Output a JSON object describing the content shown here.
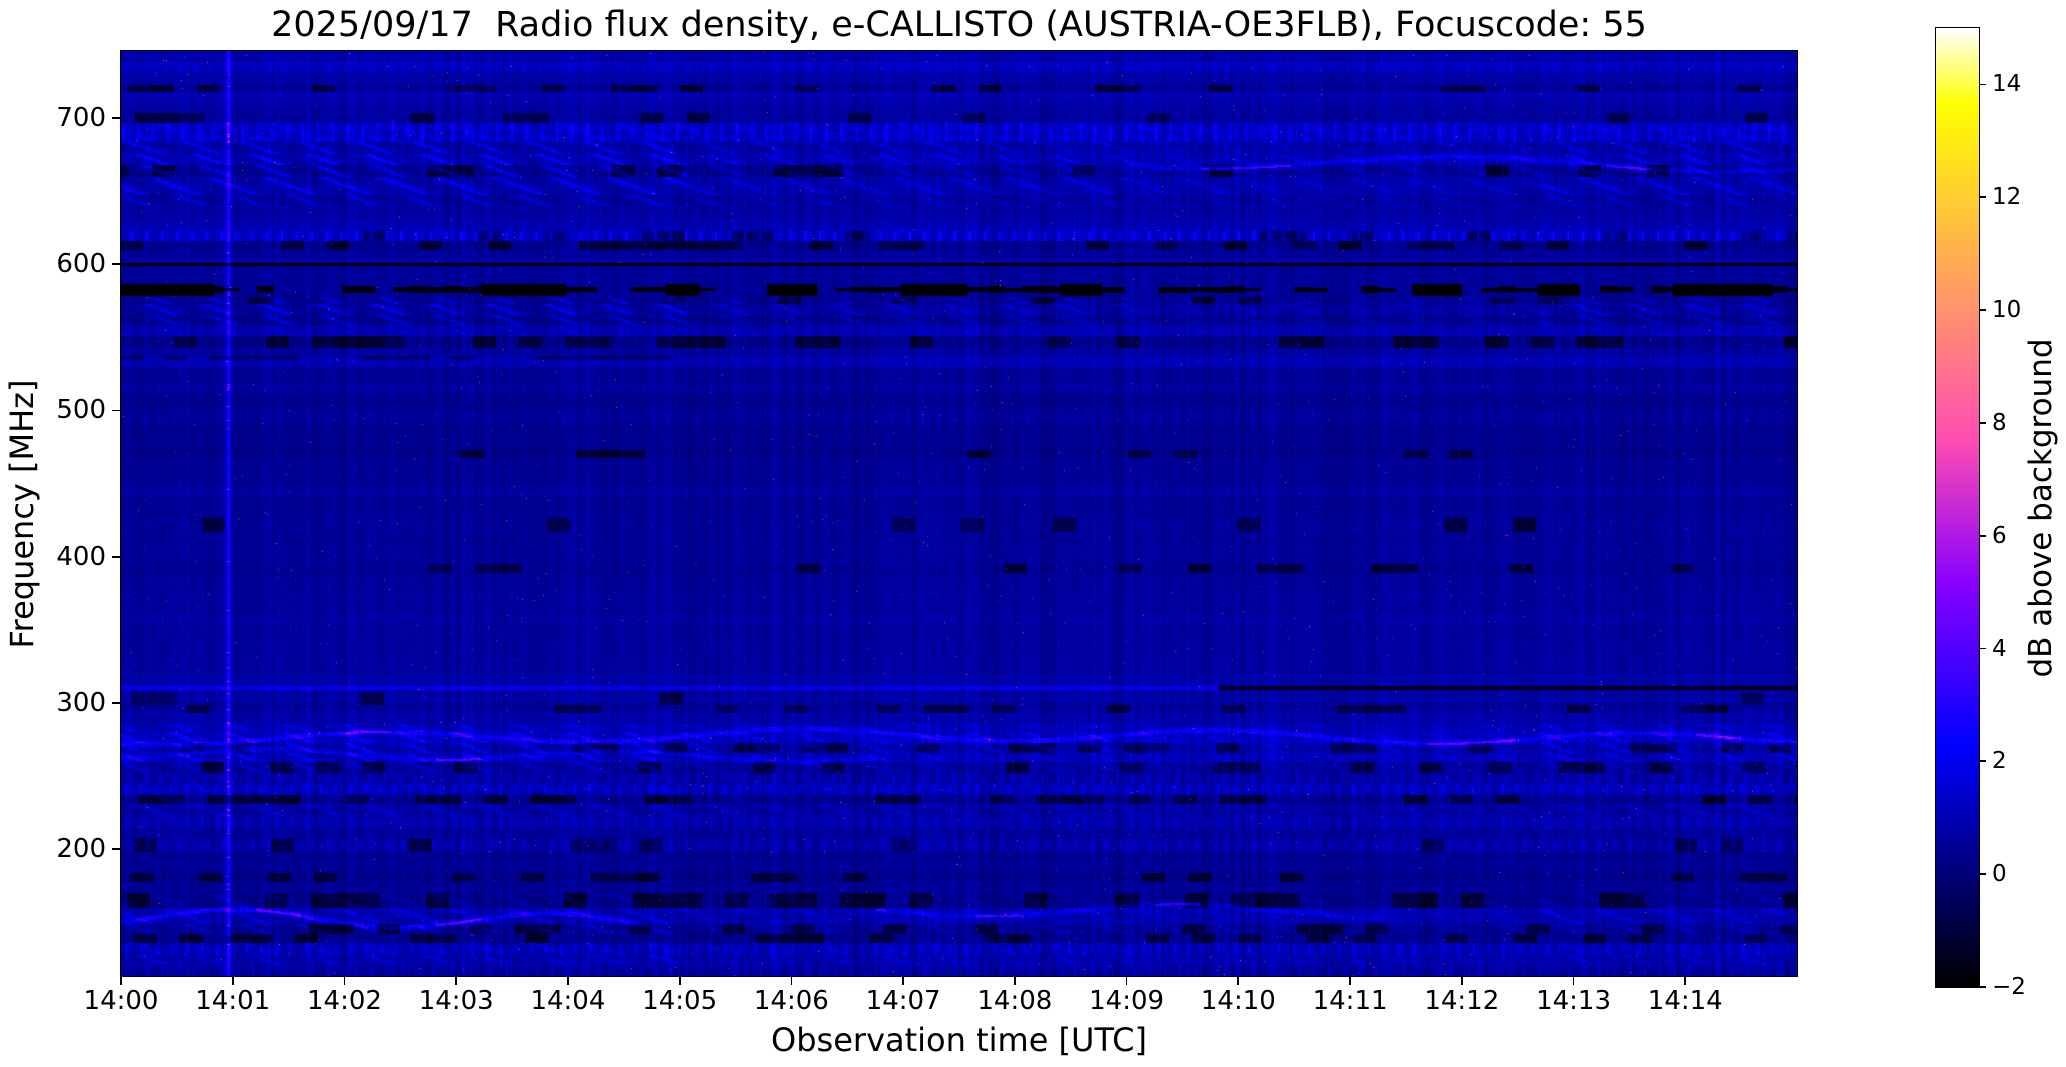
{
  "figure": {
    "title": "2025/09/17  Radio flux density, e-CALLISTO (AUSTRIA-OE3FLB), Focuscode: 55",
    "xlabel": "Observation time [UTC]",
    "ylabel": "Frequency [MHz]",
    "background_color": "#ffffff",
    "text_color": "#000000"
  },
  "axes": {
    "x_tick_labels": [
      "14:00",
      "14:01",
      "14:02",
      "14:03",
      "14:04",
      "14:05",
      "14:06",
      "14:07",
      "14:08",
      "14:09",
      "14:10",
      "14:11",
      "14:12",
      "14:13",
      "14:14"
    ],
    "x_total_minutes": 15,
    "y_tick_labels": [
      "700",
      "600",
      "500",
      "400",
      "300",
      "200"
    ],
    "y_tick_values": [
      700,
      600,
      500,
      400,
      300,
      200
    ],
    "freq_top_mhz": 746,
    "freq_bottom_mhz": 113
  },
  "colorbar": {
    "label": "dB above background",
    "tick_labels": [
      "14",
      "12",
      "10",
      "8",
      "6",
      "4",
      "2",
      "0",
      "−2"
    ],
    "tick_values": [
      14,
      12,
      10,
      8,
      6,
      4,
      2,
      0,
      -2
    ],
    "vmin": -2,
    "vmax": 15,
    "colormap": "gnuplot2"
  },
  "chart_data": {
    "type": "heatmap",
    "title": "2025/09/17  Radio flux density, e-CALLISTO (AUSTRIA-OE3FLB), Focuscode: 55",
    "xlabel": "Observation time [UTC]",
    "ylabel": "Frequency [MHz]",
    "x_range_utc": [
      "14:00",
      "14:15"
    ],
    "x_tick_labels": [
      "14:00",
      "14:01",
      "14:02",
      "14:03",
      "14:04",
      "14:05",
      "14:06",
      "14:07",
      "14:08",
      "14:09",
      "14:10",
      "14:11",
      "14:12",
      "14:13",
      "14:14"
    ],
    "y_range_mhz": [
      113,
      746
    ],
    "y_tick_values_mhz": [
      700,
      600,
      500,
      400,
      300,
      200
    ],
    "value_unit": "dB above background",
    "value_range": [
      -2,
      15
    ],
    "colormap": "gnuplot2",
    "background_level_db": 0.6,
    "notable_features": [
      "Quiet-Sun spectrogram: deep blue background near 0-1 dB, no solar bursts",
      "Thin saturated black horizontal line at 600 MHz across full duration",
      "Row of black saturated dashes/blobs near 583 MHz across full duration",
      "Line near 310 MHz: bright blue before ~14:10, black after ~14:10",
      "Bright vertical RFI/calibration line at ~14:01 spanning all frequencies with magenta flecks",
      "Diagonal RFI streak texture strongest between 14:00 and 14:04",
      "Bright dotted RFI bands near 690 MHz and 620 MHz",
      "Bright wavy RFI ridges near 277 MHz, 264 MHz, 670 MHz and 152 MHz",
      "Strong fine vertical striping (per-sweep noise) everywhere"
    ],
    "render_model": {
      "seed": 7,
      "bands": [
        [
          746,
          738,
          0.8,
          0.8,
          0,
          0,
          0
        ],
        [
          738,
          732,
          1.05,
          0.7,
          0,
          0.3,
          0
        ],
        [
          732,
          723,
          0.6,
          0.7,
          0,
          0,
          0
        ],
        [
          723,
          718,
          0.35,
          0.8,
          0,
          0,
          0.3
        ],
        [
          718,
          712,
          0.85,
          0.7,
          0,
          0,
          0
        ],
        [
          712,
          704,
          0.6,
          0.7,
          0,
          0,
          0
        ],
        [
          704,
          697,
          0.5,
          0.7,
          0,
          0,
          0.15
        ],
        [
          697,
          684,
          1.15,
          0.9,
          0.3,
          0.8,
          0
        ],
        [
          684,
          676,
          0.6,
          0.9,
          0.9,
          0.3,
          0
        ],
        [
          676,
          668,
          0.95,
          0.9,
          1.0,
          0,
          0
        ],
        [
          668,
          660,
          0.45,
          1.0,
          1.0,
          0,
          0.25
        ],
        [
          660,
          648,
          0.8,
          0.9,
          0.9,
          0,
          0
        ],
        [
          648,
          640,
          0.55,
          0.8,
          0.7,
          0,
          0
        ],
        [
          640,
          630,
          0.65,
          0.7,
          0,
          0,
          0
        ],
        [
          630,
          623,
          0.9,
          0.8,
          0,
          0.3,
          0
        ],
        [
          623,
          616,
          1.25,
          1.0,
          0,
          1.1,
          0.15
        ],
        [
          616,
          610,
          0.35,
          1.0,
          0,
          0,
          0.35
        ],
        [
          610,
          603,
          0.6,
          0.6,
          0,
          0,
          0
        ],
        [
          603,
          601.5,
          0.95,
          0.5,
          0,
          0,
          0
        ],
        [
          601.5,
          599,
          -1.9,
          0.15,
          0,
          0,
          0
        ],
        [
          599,
          589,
          0.55,
          0.6,
          0,
          0,
          0
        ],
        [
          589,
          578,
          0.55,
          0.8,
          0,
          0,
          0
        ],
        [
          578,
          573,
          0.5,
          0.9,
          0.8,
          0,
          0.2
        ],
        [
          573,
          566,
          0.75,
          0.9,
          0.9,
          0,
          0
        ],
        [
          566,
          558,
          0.5,
          0.9,
          0.8,
          0,
          0
        ],
        [
          558,
          551,
          1.05,
          0.9,
          0.3,
          0,
          0
        ],
        [
          551,
          543,
          0.4,
          1.0,
          0,
          0,
          0.3
        ],
        [
          543,
          537,
          0.8,
          0.8,
          0,
          0,
          0
        ],
        [
          537,
          530,
          1.1,
          0.8,
          0,
          0,
          0
        ],
        [
          530,
          519,
          0.6,
          0.7,
          0,
          0,
          0
        ],
        [
          519,
          512,
          0.75,
          0.7,
          0,
          0,
          0
        ],
        [
          512,
          500,
          0.5,
          0.6,
          0,
          0,
          0
        ],
        [
          500,
          492,
          0.65,
          0.7,
          0,
          0.3,
          0
        ],
        [
          492,
          473,
          0.5,
          0.6,
          0,
          0,
          0
        ],
        [
          473,
          468,
          0.4,
          0.7,
          0,
          0,
          0.2
        ],
        [
          468,
          448,
          0.55,
          0.6,
          0,
          0,
          0
        ],
        [
          448,
          442,
          0.7,
          0.7,
          0,
          0,
          0
        ],
        [
          442,
          427,
          0.5,
          0.6,
          0,
          0,
          0
        ],
        [
          427,
          417,
          0.55,
          0.8,
          0,
          0,
          0.15
        ],
        [
          417,
          395,
          0.5,
          0.6,
          0,
          0,
          0
        ],
        [
          395,
          389,
          0.4,
          0.7,
          0,
          0,
          0.2
        ],
        [
          389,
          361,
          0.5,
          0.6,
          0,
          0,
          0
        ],
        [
          361,
          353,
          0.6,
          0.7,
          0,
          0,
          0
        ],
        [
          353,
          330,
          0.48,
          0.6,
          0,
          0,
          0
        ],
        [
          330,
          318,
          0.55,
          0.7,
          0,
          0,
          0
        ],
        [
          318,
          313,
          0.7,
          0.7,
          0,
          0,
          0
        ],
        [
          313,
          308,
          0.65,
          0.8,
          0,
          0,
          0
        ],
        [
          308,
          299,
          0.6,
          0.8,
          0,
          0,
          0.1
        ],
        [
          299,
          293,
          0.4,
          0.9,
          0,
          0,
          0.25
        ],
        [
          293,
          286,
          0.7,
          0.9,
          0,
          0,
          0
        ],
        [
          286,
          280,
          1.0,
          1.0,
          0.6,
          0,
          0
        ],
        [
          280,
          273,
          1.15,
          1.1,
          0.8,
          0,
          0
        ],
        [
          273,
          266,
          0.8,
          1.1,
          0.9,
          0,
          0.2
        ],
        [
          266,
          260,
          1.0,
          1.0,
          0.8,
          0,
          0
        ],
        [
          260,
          252,
          0.5,
          1.0,
          0.6,
          0,
          0.25
        ],
        [
          252,
          245,
          0.7,
          0.9,
          0,
          0.5,
          0
        ],
        [
          245,
          237,
          1.0,
          0.9,
          0.3,
          0.6,
          0
        ],
        [
          237,
          231,
          0.4,
          1.0,
          0,
          0,
          0.35
        ],
        [
          231,
          222,
          0.7,
          0.9,
          0.5,
          0,
          0
        ],
        [
          222,
          214,
          0.85,
          0.9,
          0,
          0.4,
          0
        ],
        [
          214,
          207,
          0.55,
          0.8,
          0,
          0,
          0
        ],
        [
          207,
          198,
          0.8,
          0.9,
          0,
          0.5,
          0.15
        ],
        [
          198,
          184,
          0.5,
          0.6,
          0,
          0,
          0
        ],
        [
          184,
          178,
          0.35,
          0.8,
          0,
          0,
          0.25
        ],
        [
          178,
          170,
          0.55,
          0.7,
          0,
          0,
          0
        ],
        [
          170,
          160,
          0.4,
          0.9,
          0.4,
          0,
          0.3
        ],
        [
          160,
          149,
          0.95,
          1.0,
          0.6,
          0,
          0
        ],
        [
          149,
          142,
          0.6,
          1.0,
          0.6,
          0,
          0.2
        ],
        [
          142,
          136,
          0.4,
          1.0,
          0,
          0,
          0.35
        ],
        [
          136,
          128,
          1.1,
          1.1,
          0.4,
          0.6,
          0
        ],
        [
          128,
          121,
          0.9,
          1.1,
          0.5,
          0,
          0
        ],
        [
          121,
          113,
          0.75,
          1.0,
          0,
          0.4,
          0
        ]
      ],
      "diag_x_regions": [
        [
          0,
          0.337,
          1.0
        ],
        [
          0.337,
          0.6,
          0.62
        ],
        [
          0.6,
          0.847,
          0.42
        ],
        [
          0.847,
          1.0,
          0.8
        ]
      ],
      "h_lines": [
        {
          "f": 310.5,
          "half": 1.2,
          "dv": 1.2,
          "x0": 0,
          "x1": 0.655
        },
        {
          "f": 310.5,
          "half": 1.3,
          "set": -1.6,
          "x0": 0.655,
          "x1": 1
        }
      ],
      "dash_row": {
        "f": 583,
        "half": 2.6,
        "seg": 17,
        "prob": 0.58,
        "v": -1.85,
        "blob_half": 4.2,
        "blobs": [
          [
            0,
            0.055
          ],
          [
            0.215,
            0.265
          ],
          [
            0.325,
            0.345
          ],
          [
            0.385,
            0.415
          ],
          [
            0.465,
            0.505
          ],
          [
            0.56,
            0.585
          ],
          [
            0.77,
            0.8
          ],
          [
            0.845,
            0.87
          ],
          [
            0.925,
            0.985
          ]
        ]
      },
      "dash_row2": {
        "f": 536.5,
        "half": 1.4,
        "seg": 22,
        "prob": 0.42,
        "v": -1.2,
        "x0": 0,
        "x1": 0.335
      },
      "v_lines": [
        {
          "xf": 0.0638,
          "w": 3,
          "dv": 2.0,
          "spark": 3.0
        },
        {
          "xf": 0.268,
          "w": 2,
          "dv": 0.3,
          "spark": 0
        },
        {
          "xf": 0.352,
          "w": 2,
          "dv": 0.35,
          "spark": 0
        },
        {
          "xf": 0.487,
          "w": 2,
          "dv": 0.3,
          "spark": 0
        }
      ],
      "wavy": [
        {
          "f": 277,
          "amp": 6,
          "k": 0.015,
          "ph": 0.8,
          "dv": 1.1,
          "x0": 0,
          "x1": 1
        },
        {
          "f": 264,
          "amp": 5,
          "k": 0.018,
          "ph": 2.0,
          "dv": 0.75,
          "x0": 0,
          "x1": 0.45
        },
        {
          "f": 670,
          "amp": 7,
          "k": 0.012,
          "ph": 1.2,
          "dv": 0.9,
          "x0": 0.6,
          "x1": 1
        },
        {
          "f": 152,
          "amp": 8,
          "k": 0.02,
          "ph": 2.4,
          "dv": 1.3,
          "x0": 0,
          "x1": 0.31
        },
        {
          "f": 157,
          "amp": 6,
          "k": 0.016,
          "ph": 0.3,
          "dv": 0.8,
          "x0": 0.45,
          "x1": 0.75
        }
      ],
      "speckle_threshold": 0.9987,
      "speckle_max_db": 7.0
    }
  }
}
